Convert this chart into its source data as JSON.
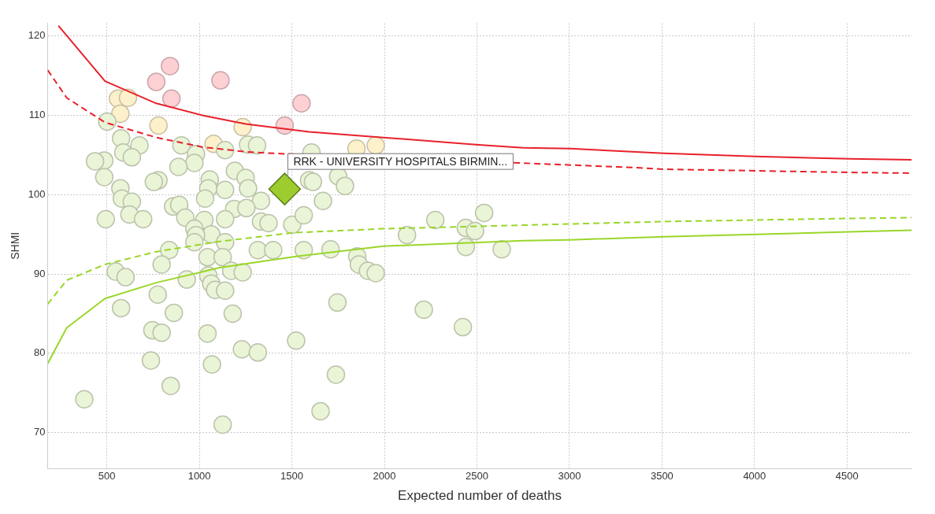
{
  "chart_data": {
    "type": "scatter",
    "xlabel": "Expected number of deaths",
    "ylabel": "SHMI",
    "xlim": [
      180,
      4850
    ],
    "xticks": [
      500,
      1000,
      1500,
      2000,
      2500,
      3000,
      3500,
      4000,
      4500
    ],
    "ylim": [
      65.5,
      121.6
    ],
    "yticks": [
      70,
      80,
      90,
      100,
      110,
      120
    ],
    "grid": true,
    "marker": "circle",
    "annotations": [
      {
        "text": "RRK - UNIVERSITY HOSPITALS BIRMIN...",
        "x": 1461,
        "y": 100.7
      }
    ],
    "series": [
      {
        "type": "line",
        "color": "#e8212a",
        "line_style": "solid",
        "marker": "none",
        "x": [
          238,
          490,
          767,
          1015,
          1250,
          1593,
          1994,
          2494,
          2750,
          3002,
          3511,
          4006,
          4515,
          4850
        ],
        "values": [
          121.3,
          114.3,
          111.5,
          110.0,
          108.9,
          107.9,
          107.2,
          106.3,
          105.9,
          105.8,
          105.2,
          104.8,
          104.5,
          104.4
        ]
      },
      {
        "type": "line",
        "color": "#e8212a",
        "line_style": "dashed",
        "marker": "none",
        "x": [
          180,
          283,
          490,
          767,
          1015,
          1250,
          1400,
          3366,
          3511,
          4006,
          4515,
          4850
        ],
        "values": [
          115.7,
          112.2,
          109.1,
          107.2,
          106.0,
          105.4,
          105.2,
          103.4,
          103.2,
          103.0,
          102.8,
          102.7
        ]
      },
      {
        "type": "line",
        "color": "#9ad62a",
        "line_style": "dashed",
        "marker": "none",
        "x": [
          180,
          283,
          490,
          767,
          1110,
          1511,
          1994,
          2500,
          3002,
          3511,
          4006,
          4515,
          4850
        ],
        "values": [
          86.2,
          89.2,
          91.2,
          92.8,
          94.1,
          95.2,
          95.7,
          96.0,
          96.3,
          96.6,
          96.8,
          97.0,
          97.1
        ]
      },
      {
        "type": "line",
        "color": "#9ad62a",
        "line_style": "solid",
        "marker": "none",
        "x": [
          180,
          283,
          490,
          767,
          1110,
          1523,
          1994,
          2750,
          3002,
          3511,
          4006,
          4515,
          4850
        ],
        "values": [
          78.7,
          83.2,
          86.9,
          88.9,
          90.8,
          92.2,
          93.5,
          94.2,
          94.3,
          94.7,
          95.0,
          95.3,
          95.5
        ]
      },
      {
        "color": "#eaf4d6",
        "x": [
          502,
          577,
          676,
          486,
          436,
          589,
          635,
          903,
          982,
          973,
          887,
          486,
          573,
          779,
          754,
          581,
          635,
          494,
          622,
          696,
          1056,
          1048,
          1031,
          1139,
          1192,
          1250,
          1263,
          1139,
          1263,
          1312,
          1333,
          1188,
          1254,
          858,
          891,
          924,
          1027,
          1139,
          1333,
          1374,
          1502,
          1564,
          1593,
          973,
          1064,
          982,
          1139,
          973,
          837,
          1316,
          1399,
          1564,
          1044,
          1126,
          796,
          548,
          601,
          932,
          1048,
          1064,
          1085,
          1139,
          1172,
          1234,
          775,
          577,
          862,
          1180,
          746,
          796,
          1044,
          1230,
          1316,
          1523,
          738,
          1068,
          845,
          378,
          1126,
          1606,
          1614,
          1750,
          1787,
          1668,
          2275,
          2440,
          2490,
          2539,
          2122,
          2440,
          2634,
          1709,
          1853,
          1862,
          1911,
          1953,
          1746,
          2213,
          2424,
          1738,
          1655
        ],
        "values": [
          109.2,
          107.1,
          106.2,
          104.3,
          104.2,
          105.3,
          104.7,
          106.2,
          105.1,
          104.0,
          103.5,
          102.2,
          100.8,
          101.8,
          101.6,
          99.5,
          99.1,
          96.9,
          97.5,
          96.9,
          101.9,
          100.8,
          99.5,
          100.6,
          103.0,
          102.1,
          100.8,
          105.6,
          106.3,
          106.2,
          99.2,
          98.2,
          98.3,
          98.5,
          98.7,
          97.1,
          96.8,
          96.9,
          96.6,
          96.4,
          96.2,
          97.4,
          101.8,
          95.7,
          95.0,
          94.9,
          94.0,
          94.0,
          93.0,
          93.0,
          93.0,
          93.0,
          92.1,
          92.1,
          91.2,
          90.3,
          89.6,
          89.3,
          89.8,
          88.8,
          88.0,
          87.9,
          90.4,
          90.2,
          87.4,
          85.7,
          85.1,
          85.0,
          82.9,
          82.6,
          82.5,
          80.5,
          80.1,
          81.6,
          79.1,
          78.6,
          75.9,
          74.2,
          71.0,
          105.3,
          101.6,
          102.3,
          101.1,
          99.2,
          96.8,
          95.8,
          95.4,
          97.7,
          94.9,
          93.4,
          93.1,
          93.1,
          92.2,
          91.2,
          90.4,
          90.1,
          86.4,
          85.5,
          83.3,
          77.3,
          72.7
        ]
      },
      {
        "color": "#fdf1cb",
        "x": [
          560,
          614,
          573,
          779,
          1234,
          1077,
          1849,
          1953
        ],
        "values": [
          112.1,
          112.2,
          110.2,
          108.7,
          108.5,
          106.4,
          105.8,
          106.2
        ]
      },
      {
        "color": "#fdd0d4",
        "x": [
          841,
          767,
          849,
          1114,
          1552,
          1461
        ],
        "values": [
          116.2,
          114.2,
          112.1,
          114.4,
          111.5,
          108.7
        ]
      },
      {
        "color": "#9ccc2e",
        "marker": "diamond",
        "x": [
          1461
        ],
        "values": [
          100.7
        ]
      }
    ]
  }
}
